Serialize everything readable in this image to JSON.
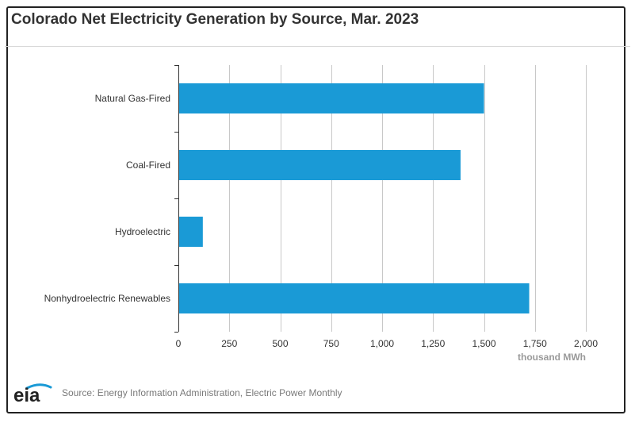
{
  "header": {
    "title": "Colorado Net Electricity Generation by Source, Mar. 2023"
  },
  "footer": {
    "source": "Source: Energy Information Administration, Electric Power Monthly",
    "logo_text": "eia"
  },
  "colors": {
    "bar": "#1a9ad6",
    "grid": "#c8c8c8",
    "axis": "#333333",
    "logo_arc": "#1a9ad6"
  },
  "chart_data": {
    "type": "bar",
    "orientation": "horizontal",
    "title": "Colorado Net Electricity Generation by Source, Mar. 2023",
    "categories": [
      "Natural Gas-Fired",
      "Coal-Fired",
      "Hydroelectric",
      "Nonhydroelectric Renewables"
    ],
    "values": [
      1500,
      1385,
      120,
      1722
    ],
    "xlabel": "thousand MWh",
    "ylabel": "",
    "xlim": [
      0,
      2000
    ],
    "ticks": [
      0,
      250,
      500,
      750,
      1000,
      1250,
      1500,
      1750,
      2000
    ],
    "tick_labels": [
      "0",
      "250",
      "500",
      "750",
      "1,000",
      "1,250",
      "1,500",
      "1,750",
      "2,000"
    ],
    "grid": true,
    "legend": "none"
  }
}
